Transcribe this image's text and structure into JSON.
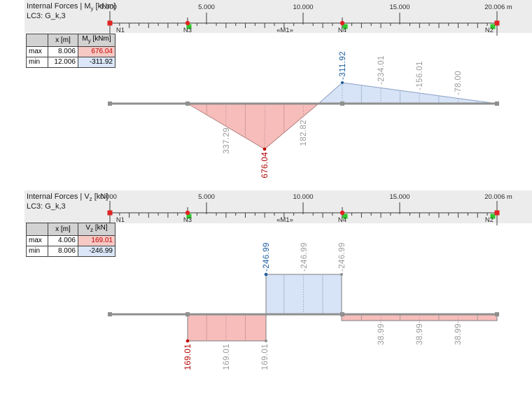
{
  "ruler": {
    "ticks": [
      "0.000",
      "5.000",
      "10.000",
      "15.000",
      "20.006 m"
    ],
    "nodes": [
      "N1",
      "N3",
      "«M1»",
      "N4",
      "N2"
    ]
  },
  "p1": {
    "title_pre": "Internal Forces | M",
    "title_sub": "y",
    "title_post": " [kNm]",
    "lc": "LC3: G_k,3",
    "tbl": {
      "h_x": "x [m]",
      "h_v_pre": "M",
      "h_v_sub": "y",
      "h_v_post": " [kNm]",
      "max_lbl": "max",
      "max_x": "8.006",
      "max_v": "676.04",
      "min_lbl": "min",
      "min_x": "12.006",
      "min_v": "-311.92"
    },
    "labels": [
      "337.29",
      "676.04",
      "182.82",
      "-311.92",
      "-234.01",
      "-156.01",
      "-78.00"
    ]
  },
  "p2": {
    "title_pre": "Internal Forces | V",
    "title_sub": "z",
    "title_post": " [kN]",
    "lc": "LC3: G_k,3",
    "tbl": {
      "h_x": "x [m]",
      "h_v_pre": "V",
      "h_v_sub": "z",
      "h_v_post": " [kN]",
      "max_lbl": "max",
      "max_x": "4.006",
      "max_v": "169.01",
      "min_lbl": "min",
      "min_x": "8.006",
      "min_v": "-246.99"
    },
    "labels": [
      "169.01",
      "169.01",
      "169.01",
      "-246.99",
      "-246.99",
      "-246.99",
      "38.99",
      "38.99",
      "38.99"
    ]
  },
  "colors": {
    "positive_fill": "#f7bdba",
    "negative_fill": "#d7e3f6",
    "max_text": "#b40000",
    "min_text": "#1d5e9e",
    "gray_label": "#9b9b9b",
    "beam": "#8f8f8f",
    "band": "#ececec",
    "node_marker_red": "#e02424",
    "node_marker_green": "#2ecc2e",
    "table_max_highlight": "#f6c9c4",
    "table_min_highlight": "#dbe7f8"
  },
  "chart_data": [
    {
      "type": "area",
      "title": "Internal Forces | My [kNm]",
      "subtitle": "LC3: G_k,3",
      "xlabel": "x [m]",
      "ylabel": "My [kNm]",
      "x_range": [
        0,
        20.006
      ],
      "x": [
        0,
        4.006,
        6.0,
        8.006,
        10.0,
        12.006,
        14.0,
        16.0,
        18.0,
        20.006
      ],
      "values": [
        0,
        0,
        337.29,
        676.04,
        182.82,
        -311.92,
        -234.01,
        -156.01,
        -78.0,
        0
      ],
      "max": {
        "x": 8.006,
        "value": 676.04
      },
      "min": {
        "x": 12.006,
        "value": -311.92
      },
      "nodes": [
        {
          "name": "N1",
          "x": 0
        },
        {
          "name": "N3",
          "x": 4.006
        },
        {
          "name": "M1",
          "x": 9.0
        },
        {
          "name": "N4",
          "x": 12.006
        },
        {
          "name": "N2",
          "x": 20.006
        }
      ],
      "ruler_ticks": [
        0,
        5,
        10,
        15,
        20.006
      ],
      "positive_drawn_below_axis": true
    },
    {
      "type": "step-area",
      "title": "Internal Forces | Vz [kN]",
      "subtitle": "LC3: G_k,3",
      "xlabel": "x [m]",
      "ylabel": "Vz [kN]",
      "x_range": [
        0,
        20.006
      ],
      "segments": [
        {
          "from": 0,
          "to": 4.006,
          "value": 0
        },
        {
          "from": 4.006,
          "to": 8.006,
          "value": 169.01
        },
        {
          "from": 8.006,
          "to": 12.006,
          "value": -246.99
        },
        {
          "from": 12.006,
          "to": 20.006,
          "value": 38.99
        }
      ],
      "max": {
        "x": 4.006,
        "value": 169.01
      },
      "min": {
        "x": 8.006,
        "value": -246.99
      },
      "nodes": [
        {
          "name": "N1",
          "x": 0
        },
        {
          "name": "N3",
          "x": 4.006
        },
        {
          "name": "M1",
          "x": 9.0
        },
        {
          "name": "N4",
          "x": 12.006
        },
        {
          "name": "N2",
          "x": 20.006
        }
      ],
      "ruler_ticks": [
        0,
        5,
        10,
        15,
        20.006
      ],
      "positive_drawn_below_axis": true
    }
  ]
}
